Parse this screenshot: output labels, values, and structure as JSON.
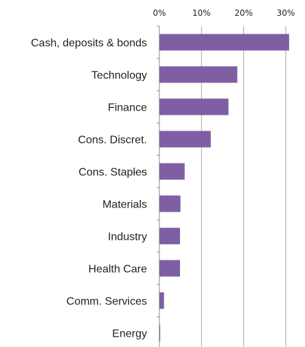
{
  "chart_data": {
    "type": "bar",
    "orientation": "horizontal",
    "categories": [
      "Cash, deposits & bonds",
      "Technology",
      "Finance",
      "Cons. Discret.",
      "Cons. Staples",
      "Materials",
      "Industry",
      "Health Care",
      "Comm. Services",
      "Energy"
    ],
    "values": [
      30.8,
      18.5,
      16.4,
      12.2,
      6.0,
      5.0,
      4.9,
      4.9,
      1.1,
      0.2
    ],
    "xlim": [
      0,
      30
    ],
    "xticks": [
      0,
      10,
      20,
      30
    ],
    "xtick_labels": [
      "0%",
      "10%",
      "20%",
      "30%"
    ],
    "x_axis_position": "top",
    "grid": "vertical",
    "bar_color": "#7f5fa3",
    "grid_color": "#a6a6a6",
    "title": "",
    "xlabel": "",
    "ylabel": ""
  }
}
